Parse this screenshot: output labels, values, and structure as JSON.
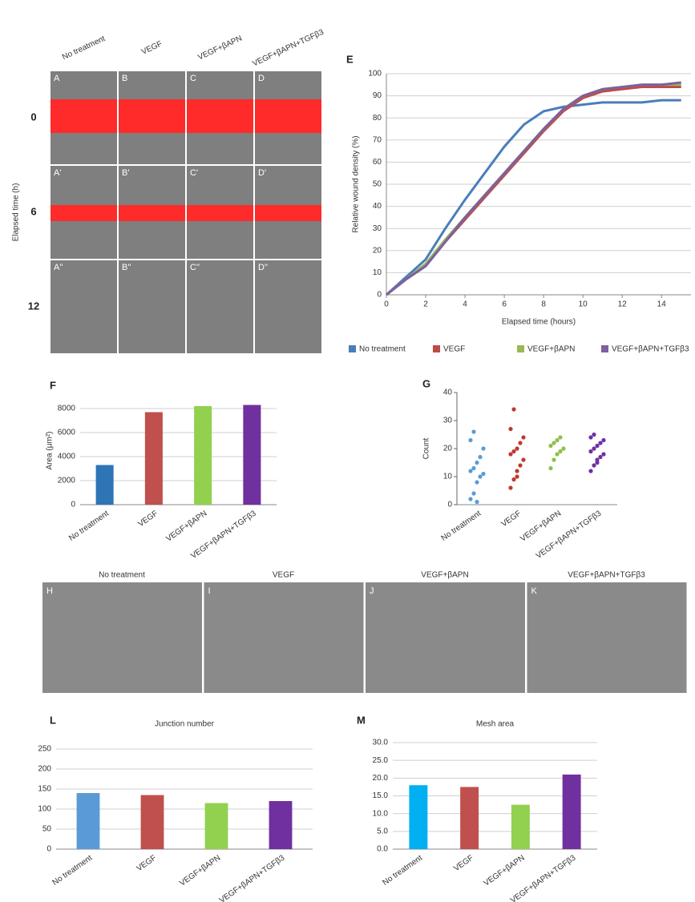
{
  "wound_images": {
    "columns": [
      "No treatment",
      "VEGF",
      "VEGF+βAPN",
      "VEGF+βAPN+TGFβ3"
    ],
    "rows": [
      "0",
      "6",
      "12"
    ],
    "row_axis_label": "Elapsed time (h)",
    "letters": [
      [
        "A",
        "B",
        "C",
        "D"
      ],
      [
        "A'",
        "B'",
        "C'",
        "D'"
      ],
      [
        "A''",
        "B''",
        "C''",
        "D''"
      ]
    ]
  },
  "sprout_images": {
    "columns": [
      "No treatment",
      "VEGF",
      "VEGF+βAPN",
      "VEGF+βAPN+TGFβ3"
    ],
    "letters": [
      "H",
      "I",
      "J",
      "K"
    ]
  },
  "chart_data": [
    {
      "type": "line",
      "panel_letter": "E",
      "x_label": "Elapsed time (hours)",
      "y_label": "Relative wound density (%)",
      "x": [
        0,
        1,
        2,
        3,
        4,
        5,
        6,
        7,
        8,
        9,
        10,
        11,
        12,
        13,
        14,
        15
      ],
      "xlim": [
        0,
        15.5
      ],
      "xticks": [
        0,
        2,
        4,
        6,
        8,
        10,
        12,
        14
      ],
      "ylim": [
        0,
        100
      ],
      "yticks": [
        0,
        10,
        20,
        30,
        40,
        50,
        60,
        70,
        80,
        90,
        100
      ],
      "grid": true,
      "series": [
        {
          "name": "No treatment",
          "color": "#4a7ebb",
          "values": [
            0,
            8,
            16,
            30,
            43,
            55,
            67,
            77,
            83,
            85,
            86,
            87,
            87,
            87,
            88,
            88
          ]
        },
        {
          "name": "VEGF",
          "color": "#be4b48",
          "values": [
            0,
            7,
            13,
            24,
            34,
            44,
            54,
            64,
            74,
            83,
            89,
            92,
            93,
            94,
            94,
            94
          ]
        },
        {
          "name": "VEGF+βAPN",
          "color": "#98b954",
          "values": [
            0,
            7,
            14,
            25,
            35,
            45,
            55,
            65,
            75,
            84,
            90,
            93,
            94,
            95,
            95,
            95
          ]
        },
        {
          "name": "VEGF+βAPN+TGFβ3",
          "color": "#7d60a0",
          "values": [
            0,
            7,
            13,
            24,
            35,
            45,
            55,
            65,
            75,
            84,
            90,
            93,
            94,
            95,
            95,
            96
          ]
        }
      ]
    },
    {
      "type": "bar",
      "panel_letter": "F",
      "y_label": "Area (μm²)",
      "categories": [
        "No treatment",
        "VEGF",
        "VEGF+βAPN",
        "VEGF+βAPN+TGFβ3"
      ],
      "values": [
        3300,
        7700,
        8200,
        8300
      ],
      "colors": [
        "#2e75b6",
        "#c0504d",
        "#92d050",
        "#7030a0"
      ],
      "ylim": [
        0,
        9000
      ],
      "yticks": [
        0,
        2000,
        4000,
        6000,
        8000
      ],
      "grid": true
    },
    {
      "type": "strip",
      "panel_letter": "G",
      "y_label": "Count",
      "categories": [
        "No treatment",
        "VEGF",
        "VEGF+βAPN",
        "VEGF+βAPN+TGFβ3"
      ],
      "values": [
        [
          2,
          4,
          8,
          10,
          11,
          12,
          13,
          15,
          17,
          20,
          23,
          26,
          1
        ],
        [
          6,
          9,
          12,
          14,
          16,
          18,
          19,
          20,
          22,
          24,
          27,
          34,
          10
        ],
        [
          13,
          16,
          18,
          19,
          20,
          21,
          22,
          23,
          24
        ],
        [
          12,
          14,
          16,
          17,
          18,
          19,
          20,
          21,
          22,
          23,
          24,
          25,
          15
        ]
      ],
      "colors": [
        "#5b9bd5",
        "#c0392b",
        "#8fbf4d",
        "#7030a0"
      ],
      "ylim": [
        0,
        40
      ],
      "yticks": [
        0,
        10,
        20,
        30,
        40
      ]
    },
    {
      "type": "bar",
      "panel_letter": "L",
      "title": "Junction number",
      "categories": [
        "No treatment",
        "VEGF",
        "VEGF+βAPN",
        "VEGF+βAPN+TGFβ3"
      ],
      "values": [
        140,
        135,
        115,
        120
      ],
      "colors": [
        "#5b9bd5",
        "#c0504d",
        "#92d050",
        "#7030a0"
      ],
      "ylim": [
        0,
        250
      ],
      "yticks": [
        0,
        50,
        100,
        150,
        200,
        250
      ],
      "grid": true
    },
    {
      "type": "bar",
      "panel_letter": "M",
      "title": "Mesh area",
      "categories": [
        "No treatment",
        "VEGF",
        "VEGF+βAPN",
        "VEGF+βAPN+TGFβ3"
      ],
      "values": [
        18,
        17.5,
        12.5,
        21
      ],
      "colors": [
        "#00b0f0",
        "#c0504d",
        "#92d050",
        "#7030a0"
      ],
      "ylim": [
        0,
        30
      ],
      "yticks": [
        {
          "value": 0,
          "label": "0.0"
        },
        {
          "value": 5,
          "label": "5.0"
        },
        {
          "value": 10,
          "label": "10.0"
        },
        {
          "value": 15,
          "label": "15.0"
        },
        {
          "value": 20,
          "label": "20.0"
        },
        {
          "value": 25,
          "label": "25.0"
        },
        {
          "value": 30,
          "label": "30.0"
        }
      ],
      "grid": true
    }
  ]
}
